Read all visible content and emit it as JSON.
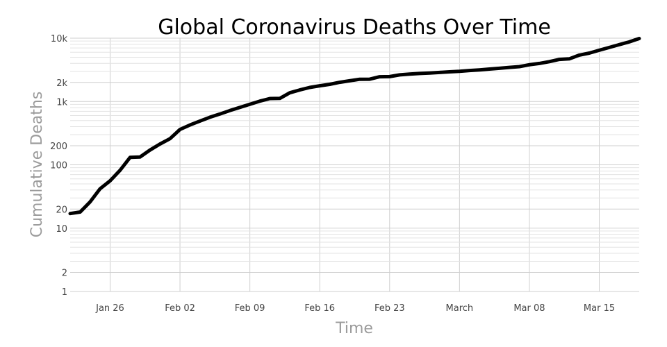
{
  "chart_data": {
    "type": "line",
    "title": "Global Coronavirus Deaths Over Time",
    "xlabel": "Time",
    "ylabel": "Cumulative Deaths",
    "y_scale": "log",
    "ylim": [
      1,
      10000
    ],
    "xlim": [
      "2020-01-22",
      "2020-03-19"
    ],
    "grid": true,
    "line_color": "#000000",
    "x_ticks": [
      {
        "date": "2020-01-26",
        "label": "Jan 26"
      },
      {
        "date": "2020-02-02",
        "label": "Feb 02"
      },
      {
        "date": "2020-02-09",
        "label": "Feb 09"
      },
      {
        "date": "2020-02-16",
        "label": "Feb 16"
      },
      {
        "date": "2020-02-23",
        "label": "Feb 23"
      },
      {
        "date": "2020-03-01",
        "label": "March"
      },
      {
        "date": "2020-03-08",
        "label": "Mar 08"
      },
      {
        "date": "2020-03-15",
        "label": "Mar 15"
      }
    ],
    "y_ticks": [
      {
        "value": 1,
        "label": "1"
      },
      {
        "value": 2,
        "label": "2"
      },
      {
        "value": 10,
        "label": "10"
      },
      {
        "value": 20,
        "label": "20"
      },
      {
        "value": 100,
        "label": "100"
      },
      {
        "value": 200,
        "label": "200"
      },
      {
        "value": 1000,
        "label": "1k"
      },
      {
        "value": 2000,
        "label": "2k"
      },
      {
        "value": 10000,
        "label": "10k"
      }
    ],
    "series": [
      {
        "x": [
          "2020-01-22",
          "2020-01-23",
          "2020-01-24",
          "2020-01-25",
          "2020-01-26",
          "2020-01-27",
          "2020-01-28",
          "2020-01-29",
          "2020-01-30",
          "2020-01-31",
          "2020-02-01",
          "2020-02-02",
          "2020-02-03",
          "2020-02-04",
          "2020-02-05",
          "2020-02-06",
          "2020-02-07",
          "2020-02-08",
          "2020-02-09",
          "2020-02-10",
          "2020-02-11",
          "2020-02-12",
          "2020-02-13",
          "2020-02-14",
          "2020-02-15",
          "2020-02-16",
          "2020-02-17",
          "2020-02-18",
          "2020-02-19",
          "2020-02-20",
          "2020-02-21",
          "2020-02-22",
          "2020-02-23",
          "2020-02-24",
          "2020-02-25",
          "2020-02-26",
          "2020-02-27",
          "2020-02-28",
          "2020-02-29",
          "2020-03-01",
          "2020-03-02",
          "2020-03-03",
          "2020-03-04",
          "2020-03-05",
          "2020-03-06",
          "2020-03-07",
          "2020-03-08",
          "2020-03-09",
          "2020-03-10",
          "2020-03-11",
          "2020-03-12",
          "2020-03-13",
          "2020-03-14",
          "2020-03-15",
          "2020-03-16",
          "2020-03-17",
          "2020-03-18",
          "2020-03-19"
        ],
        "values": [
          17,
          18,
          26,
          42,
          56,
          82,
          131,
          133,
          171,
          213,
          259,
          362,
          426,
          492,
          564,
          634,
          719,
          806,
          906,
          1013,
          1113,
          1118,
          1371,
          1523,
          1666,
          1770,
          1868,
          2007,
          2122,
          2247,
          2251,
          2458,
          2469,
          2629,
          2708,
          2770,
          2814,
          2872,
          2941,
          2996,
          3085,
          3160,
          3254,
          3348,
          3460,
          3558,
          3802,
          3988,
          4262,
          4615,
          4720,
          5404,
          5819,
          6440,
          7126,
          7905,
          8733,
          9867
        ]
      }
    ]
  }
}
